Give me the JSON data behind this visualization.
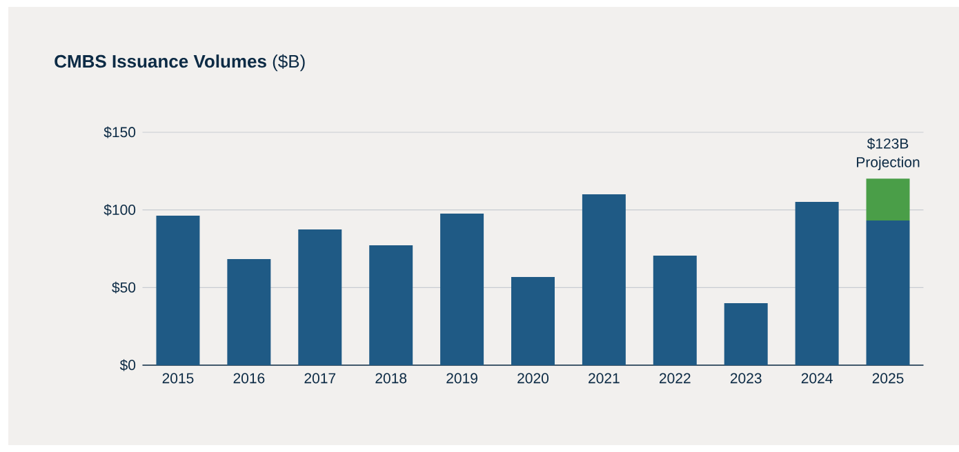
{
  "chart_data": {
    "type": "bar",
    "title": "**CMBS Issuance Volumes** ($B)",
    "categories": [
      "2015",
      "2016",
      "2017",
      "2018",
      "2019",
      "2020",
      "2021",
      "2022",
      "2023",
      "2024",
      "2025"
    ],
    "stacked": true,
    "series": [
      {
        "color": "#1f5a85",
        "values": [
          96.3,
          68.3,
          87.4,
          77.2,
          97.6,
          56.8,
          110.1,
          70.6,
          39.9,
          105.2,
          93.2
        ]
      },
      {
        "color": "#4a9e48",
        "values": [
          null,
          null,
          null,
          null,
          null,
          null,
          null,
          null,
          null,
          null,
          27
        ]
      }
    ],
    "ylim": [
      0,
      150
    ],
    "yticks": [
      {
        "value": 0,
        "label": "$0"
      },
      {
        "value": 50,
        "label": "$50"
      },
      {
        "value": 100,
        "label": "$100"
      },
      {
        "value": 150,
        "label": "$150"
      }
    ],
    "grid": "y",
    "annotations": [
      "$123B Projection"
    ]
  }
}
